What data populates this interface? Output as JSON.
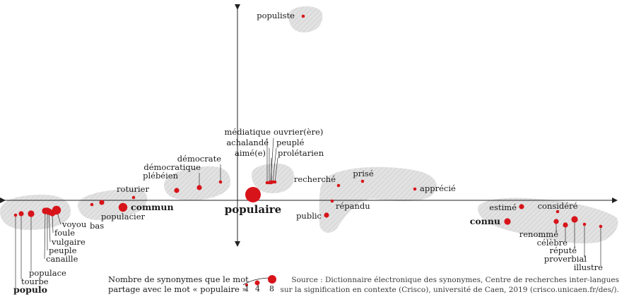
{
  "colors": {
    "dot": "#d7141a",
    "blob": "#d9d9d9",
    "axis": "#222222",
    "text": "#1a1a1a"
  },
  "center_word": "populaire",
  "words": [
    {
      "key": "populiste",
      "label": "populiste",
      "size": 1
    },
    {
      "key": "mediatique",
      "label": "médiatique",
      "size": 1
    },
    {
      "key": "achalande",
      "label": "achalandé",
      "size": 1
    },
    {
      "key": "aime",
      "label": "aimé(e)",
      "size": 1
    },
    {
      "key": "ouvrier",
      "label": "ouvrier(ère)",
      "size": 1
    },
    {
      "key": "peuple_adj",
      "label": "peuplé",
      "size": 1
    },
    {
      "key": "proletarien",
      "label": "prolétarien",
      "size": 1
    },
    {
      "key": "democrate",
      "label": "démocrate",
      "size": 1
    },
    {
      "key": "democratique",
      "label": "démocratique",
      "size": 2
    },
    {
      "key": "plebeien",
      "label": "plébéien",
      "size": 2
    },
    {
      "key": "roturier",
      "label": "roturier",
      "size": 1
    },
    {
      "key": "commun",
      "label": "commun",
      "size": 4,
      "bold": true
    },
    {
      "key": "populacier",
      "label": "populacier",
      "size": 2
    },
    {
      "key": "bas",
      "label": "bas",
      "size": 1
    },
    {
      "key": "voyou",
      "label": "voyou",
      "size": 4
    },
    {
      "key": "foule",
      "label": "foule",
      "size": 3
    },
    {
      "key": "vulgaire",
      "label": "vulgaire",
      "size": 3
    },
    {
      "key": "peuple",
      "label": "peuple",
      "size": 3
    },
    {
      "key": "canaille",
      "label": "canaille",
      "size": 3
    },
    {
      "key": "populace",
      "label": "populace",
      "size": 3
    },
    {
      "key": "tourbe",
      "label": "tourbe",
      "size": 2
    },
    {
      "key": "populo",
      "label": "populo",
      "size": 1,
      "bold": true
    },
    {
      "key": "recherche",
      "label": "recherché",
      "size": 1
    },
    {
      "key": "prise",
      "label": "prisé",
      "size": 1
    },
    {
      "key": "apprecie",
      "label": "apprécié",
      "size": 1
    },
    {
      "key": "repandu",
      "label": "répandu",
      "size": 1
    },
    {
      "key": "public",
      "label": "public",
      "size": 2
    },
    {
      "key": "estime",
      "label": "estimé",
      "size": 2
    },
    {
      "key": "considere",
      "label": "considéré",
      "size": 1
    },
    {
      "key": "connu",
      "label": "connu",
      "size": 3,
      "bold": true
    },
    {
      "key": "renomme",
      "label": "renommé",
      "size": 2
    },
    {
      "key": "celebre",
      "label": "célèbre",
      "size": 2
    },
    {
      "key": "repute",
      "label": "réputé",
      "size": 3
    },
    {
      "key": "proverbial",
      "label": "proverbial",
      "size": 1
    },
    {
      "key": "illustre",
      "label": "illustre",
      "size": 1
    }
  ],
  "legend": {
    "line1": "Nombre de synonymes que le mot",
    "line2": "partage avec le mot « populaire »",
    "values": [
      "1",
      "4",
      "8"
    ]
  },
  "source": {
    "line1": "Source : Dictionnaire électronique des synonymes, Centre de recherches inter-langues",
    "line2": "sur la signification en contexte (Crisco), université de Caen, 2019 (crisco.unicaen.fr/des/)."
  }
}
